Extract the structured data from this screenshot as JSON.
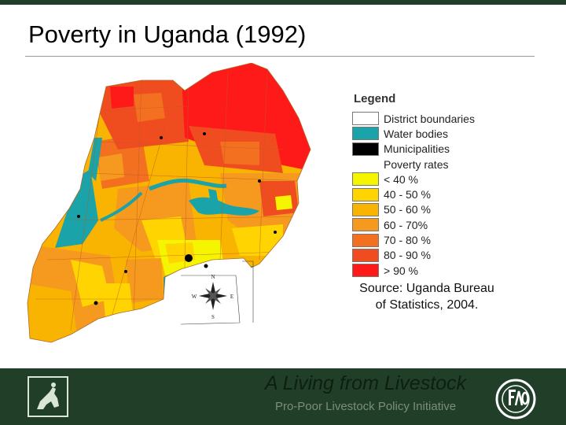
{
  "slide": {
    "title": "Poverty in Uganda (1992)"
  },
  "legend": {
    "title": "Legend",
    "items": [
      {
        "label": "District boundaries",
        "color": "#ffffff"
      },
      {
        "label": "Water bodies",
        "color": "#1aa3a8"
      },
      {
        "label": "Municipalities",
        "color": "#000000"
      },
      {
        "label": "Poverty rates",
        "color": null
      },
      {
        "label": "< 40 %",
        "color": "#f5f500"
      },
      {
        "label": "40 - 50 %",
        "color": "#ffd400"
      },
      {
        "label": "50 - 60 %",
        "color": "#f8b400"
      },
      {
        "label": "60 - 70%",
        "color": "#f59a1e"
      },
      {
        "label": "70 - 80 %",
        "color": "#f27020"
      },
      {
        "label": "80 - 90 %",
        "color": "#ef4d20"
      },
      {
        "label": "> 90 %",
        "color": "#ff1a1a"
      }
    ]
  },
  "map": {
    "compass": {
      "n": "N",
      "s": "S",
      "e": "E",
      "w": "W"
    }
  },
  "source": {
    "line1": "Source: Uganda Bureau",
    "line2": "of Statistics, 2004."
  },
  "footer": {
    "main": "A Living from Livestock",
    "sub": "Pro-Poor Livestock Policy Initiative",
    "left_logo_icon": "livestock-figure-icon",
    "right_logo_icon": "fao-logo-icon"
  },
  "colors": {
    "footer_bg": "#213f28",
    "water": "#1aa3a8"
  }
}
